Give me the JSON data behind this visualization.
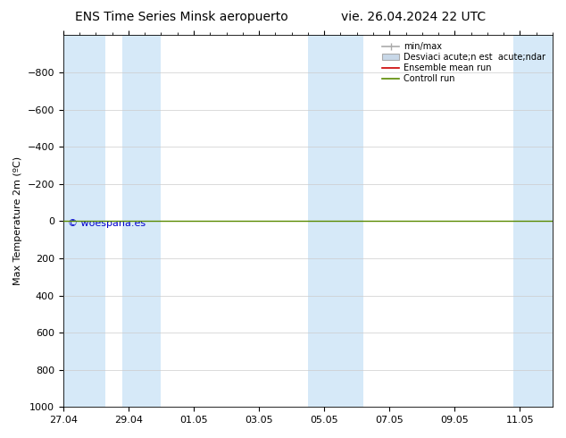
{
  "title_left": "ENS Time Series Minsk aeropuerto",
  "title_right": "vie. 26.04.2024 22 UTC",
  "ylabel": "Max Temperature 2m (ºC)",
  "ylim_bottom": 1000,
  "ylim_top": -1000,
  "yticks": [
    -800,
    -600,
    -400,
    -200,
    0,
    200,
    400,
    600,
    800,
    1000
  ],
  "xlim_left": 0,
  "xlim_right": 15,
  "xtick_positions": [
    0,
    2,
    4,
    6,
    8,
    10,
    12,
    14
  ],
  "xtick_labels": [
    "27.04",
    "29.04",
    "01.05",
    "03.05",
    "05.05",
    "07.05",
    "09.05",
    "11.05"
  ],
  "shaded_columns": [
    {
      "x_start": 0.0,
      "x_end": 1.3
    },
    {
      "x_start": 1.8,
      "x_end": 3.0
    },
    {
      "x_start": 7.5,
      "x_end": 9.2
    },
    {
      "x_start": 13.8,
      "x_end": 15.0
    }
  ],
  "shaded_color": "#d6e9f8",
  "horizontal_line_y": 0,
  "horizontal_line_color": "#5a8a00",
  "background_color": "#ffffff",
  "plot_bg_color": "#ffffff",
  "grid_color": "#cccccc",
  "legend_labels": [
    "min/max",
    "Desviaci acute;n est  acute;ndar",
    "Ensemble mean run",
    "Controll run"
  ],
  "legend_colors": [
    "#aaaaaa",
    "#c8d8e8",
    "#cc0000",
    "#5a8a00"
  ],
  "copyright_text": "© woespana.es",
  "copyright_color": "#0000cc",
  "title_fontsize": 10,
  "axis_fontsize": 8,
  "tick_fontsize": 8
}
